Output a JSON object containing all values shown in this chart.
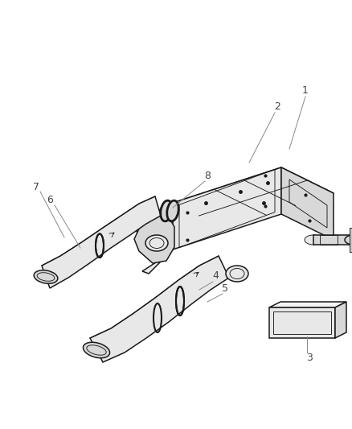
{
  "background_color": "#ffffff",
  "line_color": "#1a1a1a",
  "label_color": "#555555",
  "fill_light": "#f5f5f5",
  "fill_mid": "#e8e8e8",
  "fill_dark": "#d8d8d8",
  "fill_darker": "#c8c8c8",
  "figure_width": 4.38,
  "figure_height": 5.33,
  "dpi": 100
}
